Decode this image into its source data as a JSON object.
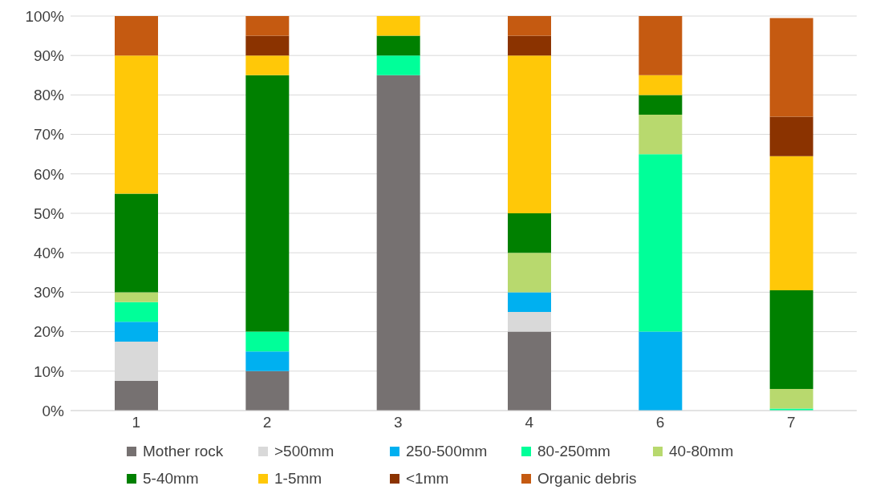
{
  "chart_data": {
    "type": "bar",
    "stacked": true,
    "categories": [
      "1",
      "2",
      "3",
      "4",
      "6",
      "7"
    ],
    "series": [
      {
        "name": "Mother rock",
        "color": "#767171",
        "values": [
          7.5,
          10,
          85,
          20,
          0,
          0
        ]
      },
      {
        "name": ">500mm",
        "color": "#d9d9d9",
        "values": [
          10,
          0,
          0,
          5,
          0,
          0
        ]
      },
      {
        "name": "250-500mm",
        "color": "#00b0f0",
        "values": [
          5,
          5,
          0,
          5,
          20,
          null
        ]
      },
      {
        "name": "80-250mm",
        "color": "#00ff99",
        "values": [
          5,
          5,
          5,
          0,
          45,
          0.5
        ]
      },
      {
        "name": "40-80mm",
        "color": "#b8d96e",
        "values": [
          2.5,
          0,
          0,
          10,
          10,
          5
        ]
      },
      {
        "name": "5-40mm",
        "color": "#008000",
        "values": [
          25,
          65,
          5,
          10,
          5,
          25
        ]
      },
      {
        "name": "1-5mm",
        "color": "#ffc808",
        "values": [
          35,
          5,
          5,
          40,
          5,
          34
        ]
      },
      {
        "name": "<1mm",
        "color": "#8b3300",
        "values": [
          0,
          5,
          0,
          5,
          0,
          10
        ]
      },
      {
        "name": "Organic debris",
        "color": "#c55a11",
        "values": [
          10,
          5,
          0,
          5,
          15,
          25
        ]
      }
    ],
    "ylim": [
      0,
      100
    ],
    "yticks": [
      {
        "value": 0,
        "label": "0%"
      },
      {
        "value": 10,
        "label": "10%"
      },
      {
        "value": 20,
        "label": "20%"
      },
      {
        "value": 30,
        "label": "30%"
      },
      {
        "value": 40,
        "label": "40%"
      },
      {
        "value": 50,
        "label": "50%"
      },
      {
        "value": 60,
        "label": "60%"
      },
      {
        "value": 70,
        "label": "70%"
      },
      {
        "value": 80,
        "label": "80%"
      },
      {
        "value": 90,
        "label": "90%"
      },
      {
        "value": 100,
        "label": "100%"
      }
    ],
    "grid": "y",
    "legend": "bottom"
  }
}
